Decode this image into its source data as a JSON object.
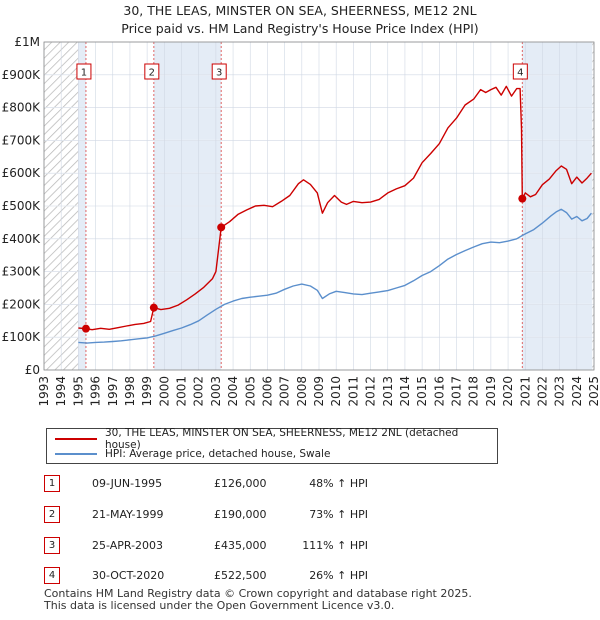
{
  "chart_data": {
    "type": "line",
    "title": "30, THE LEAS, MINSTER ON SEA, SHEERNESS, ME12 2NL",
    "subtitle": "Price paid vs. HM Land Registry's House Price Index (HPI)",
    "xlim": [
      1993,
      2025
    ],
    "ylim": [
      0,
      1000000
    ],
    "x_ticks": [
      "1993",
      "1994",
      "1995",
      "1996",
      "1997",
      "1998",
      "1999",
      "2000",
      "2001",
      "2002",
      "2003",
      "2004",
      "2005",
      "2006",
      "2007",
      "2008",
      "2009",
      "2010",
      "2011",
      "2012",
      "2013",
      "2014",
      "2015",
      "2016",
      "2017",
      "2018",
      "2019",
      "2020",
      "2021",
      "2022",
      "2023",
      "2024",
      "2025"
    ],
    "y_ticks": [
      {
        "value": 0,
        "label": "£0"
      },
      {
        "value": 100000,
        "label": "£100K"
      },
      {
        "value": 200000,
        "label": "£200K"
      },
      {
        "value": 300000,
        "label": "£300K"
      },
      {
        "value": 400000,
        "label": "£400K"
      },
      {
        "value": 500000,
        "label": "£500K"
      },
      {
        "value": 600000,
        "label": "£600K"
      },
      {
        "value": 700000,
        "label": "£700K"
      },
      {
        "value": 800000,
        "label": "£800K"
      },
      {
        "value": 900000,
        "label": "£900K"
      },
      {
        "value": 1000000,
        "label": "£1M"
      }
    ],
    "hatch_ranges": [
      [
        1993,
        1995.0
      ],
      [
        2024.9,
        2025
      ]
    ],
    "shade_ranges": [
      [
        1995.44,
        1999.39
      ],
      [
        2003.31,
        2020.83
      ]
    ],
    "series": [
      {
        "name": "30, THE LEAS, MINSTER ON SEA, SHEERNESS, ME12 2NL (detached house)",
        "color": "#cc0000",
        "points": [
          [
            1995.0,
            128000
          ],
          [
            1995.44,
            126000
          ],
          [
            1995.8,
            123000
          ],
          [
            1996.3,
            127000
          ],
          [
            1996.8,
            124000
          ],
          [
            1997.3,
            129000
          ],
          [
            1997.8,
            134000
          ],
          [
            1998.3,
            139000
          ],
          [
            1998.8,
            142000
          ],
          [
            1999.2,
            148000
          ],
          [
            1999.39,
            190000
          ],
          [
            1999.8,
            184000
          ],
          [
            2000.3,
            188000
          ],
          [
            2000.8,
            198000
          ],
          [
            2001.3,
            214000
          ],
          [
            2001.8,
            232000
          ],
          [
            2002.3,
            252000
          ],
          [
            2002.8,
            278000
          ],
          [
            2003.0,
            300000
          ],
          [
            2003.31,
            435000
          ],
          [
            2003.8,
            452000
          ],
          [
            2004.3,
            475000
          ],
          [
            2004.8,
            488000
          ],
          [
            2005.3,
            500000
          ],
          [
            2005.8,
            502000
          ],
          [
            2006.3,
            498000
          ],
          [
            2006.8,
            514000
          ],
          [
            2007.3,
            532000
          ],
          [
            2007.8,
            568000
          ],
          [
            2008.1,
            580000
          ],
          [
            2008.5,
            566000
          ],
          [
            2008.9,
            540000
          ],
          [
            2009.2,
            478000
          ],
          [
            2009.5,
            510000
          ],
          [
            2009.9,
            532000
          ],
          [
            2010.3,
            512000
          ],
          [
            2010.6,
            505000
          ],
          [
            2011.0,
            514000
          ],
          [
            2011.5,
            510000
          ],
          [
            2012.0,
            512000
          ],
          [
            2012.5,
            520000
          ],
          [
            2013.0,
            540000
          ],
          [
            2013.5,
            552000
          ],
          [
            2014.0,
            562000
          ],
          [
            2014.5,
            585000
          ],
          [
            2015.0,
            632000
          ],
          [
            2015.5,
            660000
          ],
          [
            2016.0,
            690000
          ],
          [
            2016.5,
            738000
          ],
          [
            2017.0,
            768000
          ],
          [
            2017.5,
            808000
          ],
          [
            2018.0,
            826000
          ],
          [
            2018.4,
            855000
          ],
          [
            2018.7,
            846000
          ],
          [
            2019.0,
            855000
          ],
          [
            2019.3,
            862000
          ],
          [
            2019.6,
            838000
          ],
          [
            2019.9,
            865000
          ],
          [
            2020.2,
            835000
          ],
          [
            2020.5,
            858000
          ],
          [
            2020.7,
            858000
          ],
          [
            2020.78,
            735000
          ],
          [
            2020.83,
            522500
          ],
          [
            2021.0,
            540000
          ],
          [
            2021.3,
            528000
          ],
          [
            2021.6,
            535000
          ],
          [
            2022.0,
            565000
          ],
          [
            2022.4,
            582000
          ],
          [
            2022.8,
            608000
          ],
          [
            2023.1,
            622000
          ],
          [
            2023.4,
            612000
          ],
          [
            2023.7,
            568000
          ],
          [
            2024.0,
            588000
          ],
          [
            2024.3,
            570000
          ],
          [
            2024.6,
            585000
          ],
          [
            2024.85,
            600000
          ]
        ]
      },
      {
        "name": "HPI: Average price, detached house, Swale",
        "color": "#5b8fcc",
        "points": [
          [
            1995.0,
            84000
          ],
          [
            1995.5,
            82000
          ],
          [
            1996.0,
            84000
          ],
          [
            1996.5,
            85000
          ],
          [
            1997.0,
            87000
          ],
          [
            1997.5,
            89000
          ],
          [
            1998.0,
            92000
          ],
          [
            1998.5,
            95000
          ],
          [
            1999.0,
            98000
          ],
          [
            1999.5,
            104000
          ],
          [
            2000.0,
            112000
          ],
          [
            2000.5,
            120000
          ],
          [
            2001.0,
            128000
          ],
          [
            2001.5,
            138000
          ],
          [
            2002.0,
            150000
          ],
          [
            2002.5,
            168000
          ],
          [
            2003.0,
            185000
          ],
          [
            2003.5,
            200000
          ],
          [
            2004.0,
            210000
          ],
          [
            2004.5,
            218000
          ],
          [
            2005.0,
            222000
          ],
          [
            2005.5,
            225000
          ],
          [
            2006.0,
            228000
          ],
          [
            2006.5,
            234000
          ],
          [
            2007.0,
            246000
          ],
          [
            2007.5,
            256000
          ],
          [
            2008.0,
            262000
          ],
          [
            2008.5,
            256000
          ],
          [
            2008.9,
            243000
          ],
          [
            2009.2,
            218000
          ],
          [
            2009.6,
            232000
          ],
          [
            2010.0,
            240000
          ],
          [
            2010.5,
            236000
          ],
          [
            2011.0,
            232000
          ],
          [
            2011.5,
            230000
          ],
          [
            2012.0,
            234000
          ],
          [
            2012.5,
            238000
          ],
          [
            2013.0,
            242000
          ],
          [
            2013.5,
            250000
          ],
          [
            2014.0,
            258000
          ],
          [
            2014.5,
            272000
          ],
          [
            2015.0,
            288000
          ],
          [
            2015.5,
            300000
          ],
          [
            2016.0,
            318000
          ],
          [
            2016.5,
            338000
          ],
          [
            2017.0,
            352000
          ],
          [
            2017.5,
            364000
          ],
          [
            2018.0,
            375000
          ],
          [
            2018.5,
            385000
          ],
          [
            2019.0,
            390000
          ],
          [
            2019.5,
            388000
          ],
          [
            2020.0,
            393000
          ],
          [
            2020.5,
            400000
          ],
          [
            2020.83,
            410000
          ],
          [
            2021.0,
            415000
          ],
          [
            2021.5,
            428000
          ],
          [
            2022.0,
            448000
          ],
          [
            2022.5,
            470000
          ],
          [
            2022.8,
            482000
          ],
          [
            2023.1,
            490000
          ],
          [
            2023.4,
            480000
          ],
          [
            2023.7,
            460000
          ],
          [
            2024.0,
            468000
          ],
          [
            2024.3,
            455000
          ],
          [
            2024.6,
            462000
          ],
          [
            2024.85,
            478000
          ]
        ]
      }
    ],
    "markers": [
      {
        "label": "1",
        "x": 1995.44,
        "y": 126000
      },
      {
        "label": "2",
        "x": 1999.39,
        "y": 190000
      },
      {
        "label": "3",
        "x": 2003.31,
        "y": 435000
      },
      {
        "label": "4",
        "x": 2020.83,
        "y": 522500
      }
    ],
    "legend": [
      {
        "label": "30, THE LEAS, MINSTER ON SEA, SHEERNESS, ME12 2NL (detached house)",
        "color": "#cc0000"
      },
      {
        "label": "HPI: Average price, detached house, Swale",
        "color": "#5b8fcc"
      }
    ]
  },
  "sales": [
    {
      "num": "1",
      "date": "09-JUN-1995",
      "price": "£126,000",
      "hpi": "48% ↑ HPI"
    },
    {
      "num": "2",
      "date": "21-MAY-1999",
      "price": "£190,000",
      "hpi": "73% ↑ HPI"
    },
    {
      "num": "3",
      "date": "25-APR-2003",
      "price": "£435,000",
      "hpi": "111% ↑ HPI"
    },
    {
      "num": "4",
      "date": "30-OCT-2020",
      "price": "£522,500",
      "hpi": "26% ↑ HPI"
    }
  ],
  "footer": {
    "line1": "Contains HM Land Registry data © Crown copyright and database right 2025.",
    "line2": "This data is licensed under the Open Government Licence v3.0."
  }
}
